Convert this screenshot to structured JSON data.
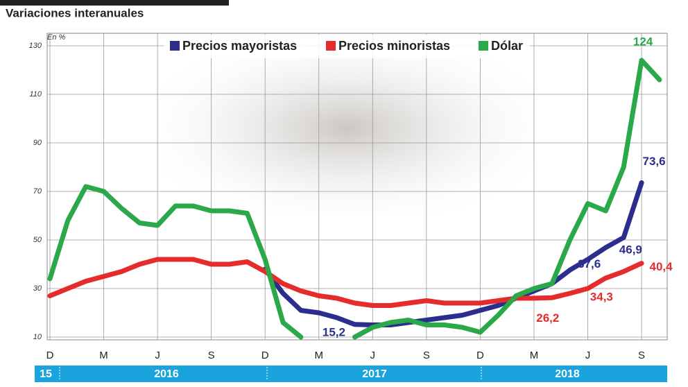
{
  "chart_data": {
    "type": "line",
    "subtitle": "Variaciones interanuales",
    "y_unit": "En %",
    "categories": [
      "D",
      null,
      null,
      "M",
      null,
      null,
      "J",
      null,
      null,
      "S",
      null,
      null,
      "D",
      null,
      null,
      "M",
      null,
      null,
      "J",
      null,
      null,
      "S",
      null,
      null,
      "D",
      null,
      null,
      "M",
      null,
      null,
      "J",
      null,
      null,
      "S",
      null
    ],
    "year_labels": [
      "15",
      "2016",
      "2017",
      "2018"
    ],
    "series": [
      {
        "name": "Precios mayoristas",
        "color": "#2b2e8c",
        "values": [
          null,
          null,
          null,
          null,
          null,
          null,
          null,
          null,
          null,
          null,
          null,
          null,
          38,
          28,
          21,
          20,
          18,
          15.2,
          15,
          15,
          16,
          17,
          18,
          19,
          21,
          23,
          26,
          29,
          32,
          37.6,
          42,
          46.9,
          51,
          73.6,
          null
        ],
        "value_labels": [
          null,
          null,
          null,
          null,
          null,
          null,
          null,
          null,
          null,
          null,
          null,
          null,
          null,
          null,
          null,
          null,
          null,
          "15,2",
          null,
          null,
          null,
          null,
          null,
          null,
          null,
          null,
          null,
          null,
          null,
          "37,6",
          null,
          "46,9",
          null,
          "73,6",
          null
        ]
      },
      {
        "name": "Precios minoristas",
        "color": "#e52b2b",
        "values": [
          27,
          30,
          33,
          35,
          37,
          40,
          42,
          42,
          42,
          40,
          40,
          41,
          37,
          32,
          29,
          27,
          26,
          24,
          23,
          23,
          24,
          25,
          24,
          24,
          24,
          25,
          26,
          26,
          26.2,
          28,
          30,
          34.3,
          37,
          40.4,
          null
        ],
        "value_labels": [
          null,
          null,
          null,
          null,
          null,
          null,
          null,
          null,
          null,
          null,
          null,
          null,
          null,
          null,
          null,
          null,
          null,
          null,
          null,
          null,
          null,
          null,
          null,
          null,
          null,
          null,
          null,
          null,
          "26,2",
          null,
          null,
          "34,3",
          null,
          "40,4",
          null
        ]
      },
      {
        "name": "Dólar",
        "color": "#2aa84a",
        "values": [
          34,
          58,
          72,
          70,
          63,
          57,
          56,
          64,
          64,
          62,
          62,
          61,
          42,
          16,
          10,
          null,
          null,
          10,
          14,
          16,
          17,
          15,
          15,
          14,
          12,
          19,
          27,
          30,
          32,
          50,
          65,
          62,
          80,
          124,
          116
        ],
        "value_labels": [
          null,
          null,
          null,
          null,
          null,
          null,
          null,
          null,
          null,
          null,
          null,
          null,
          null,
          null,
          null,
          null,
          null,
          null,
          null,
          null,
          null,
          null,
          null,
          null,
          null,
          null,
          null,
          null,
          null,
          null,
          null,
          null,
          null,
          "124",
          null
        ]
      }
    ],
    "ylim": [
      10,
      130
    ],
    "yticks": [
      10,
      30,
      50,
      70,
      90,
      110,
      130
    ],
    "grid": true
  }
}
